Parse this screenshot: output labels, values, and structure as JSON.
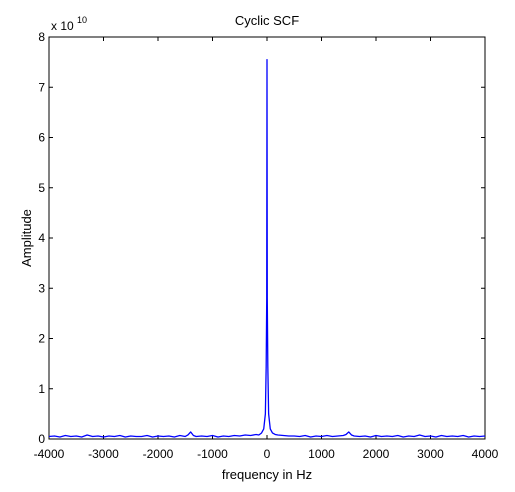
{
  "chart_data": {
    "type": "line",
    "title": "Cyclic SCF",
    "xlabel": "frequency in Hz",
    "ylabel": "Amplitude",
    "y_multiplier": {
      "base": "x 10",
      "exponent": "10"
    },
    "xlim": [
      -4000,
      4000
    ],
    "ylim": [
      0,
      8
    ],
    "x_ticks": [
      -4000,
      -3000,
      -2000,
      -1000,
      0,
      1000,
      2000,
      3000,
      4000
    ],
    "x_tick_labels": [
      "-4000",
      "-3000",
      "-2000",
      "-1000",
      "0",
      "1000",
      "2000",
      "3000",
      "4000"
    ],
    "y_ticks": [
      0,
      1,
      2,
      3,
      4,
      5,
      6,
      7,
      8
    ],
    "y_tick_labels": [
      "0",
      "1",
      "2",
      "3",
      "4",
      "5",
      "6",
      "7",
      "8"
    ],
    "grid": false,
    "line_color": "#0000ff",
    "series": [
      {
        "x": [
          -4000,
          -3900,
          -3800,
          -3700,
          -3600,
          -3500,
          -3400,
          -3300,
          -3200,
          -3100,
          -3000,
          -2900,
          -2800,
          -2700,
          -2600,
          -2500,
          -2400,
          -2300,
          -2200,
          -2100,
          -2000,
          -1900,
          -1800,
          -1700,
          -1600,
          -1500,
          -1450,
          -1400,
          -1350,
          -1300,
          -1200,
          -1100,
          -1000,
          -900,
          -800,
          -700,
          -600,
          -500,
          -400,
          -300,
          -200,
          -150,
          -100,
          -60,
          -30,
          -15,
          -5,
          0,
          5,
          15,
          30,
          60,
          100,
          150,
          200,
          300,
          400,
          500,
          600,
          700,
          800,
          900,
          1000,
          1100,
          1200,
          1300,
          1400,
          1450,
          1500,
          1550,
          1600,
          1700,
          1800,
          1900,
          2000,
          2100,
          2200,
          2300,
          2400,
          2500,
          2600,
          2700,
          2800,
          2900,
          3000,
          3100,
          3200,
          3300,
          3400,
          3500,
          3600,
          3700,
          3800,
          3900,
          4000
        ],
        "y": [
          0.05,
          0.06,
          0.04,
          0.07,
          0.05,
          0.06,
          0.04,
          0.08,
          0.05,
          0.06,
          0.04,
          0.06,
          0.05,
          0.07,
          0.04,
          0.06,
          0.05,
          0.05,
          0.07,
          0.04,
          0.06,
          0.05,
          0.06,
          0.04,
          0.07,
          0.05,
          0.08,
          0.14,
          0.07,
          0.05,
          0.06,
          0.05,
          0.07,
          0.04,
          0.06,
          0.05,
          0.07,
          0.06,
          0.08,
          0.07,
          0.09,
          0.08,
          0.12,
          0.2,
          0.5,
          1.45,
          2.8,
          7.55,
          2.8,
          1.45,
          0.5,
          0.2,
          0.12,
          0.09,
          0.08,
          0.07,
          0.06,
          0.06,
          0.05,
          0.07,
          0.04,
          0.06,
          0.05,
          0.07,
          0.05,
          0.06,
          0.07,
          0.09,
          0.14,
          0.08,
          0.06,
          0.05,
          0.06,
          0.04,
          0.07,
          0.05,
          0.06,
          0.05,
          0.07,
          0.04,
          0.06,
          0.05,
          0.08,
          0.05,
          0.06,
          0.04,
          0.07,
          0.05,
          0.06,
          0.05,
          0.07,
          0.04,
          0.06,
          0.05,
          0.06
        ]
      }
    ]
  }
}
